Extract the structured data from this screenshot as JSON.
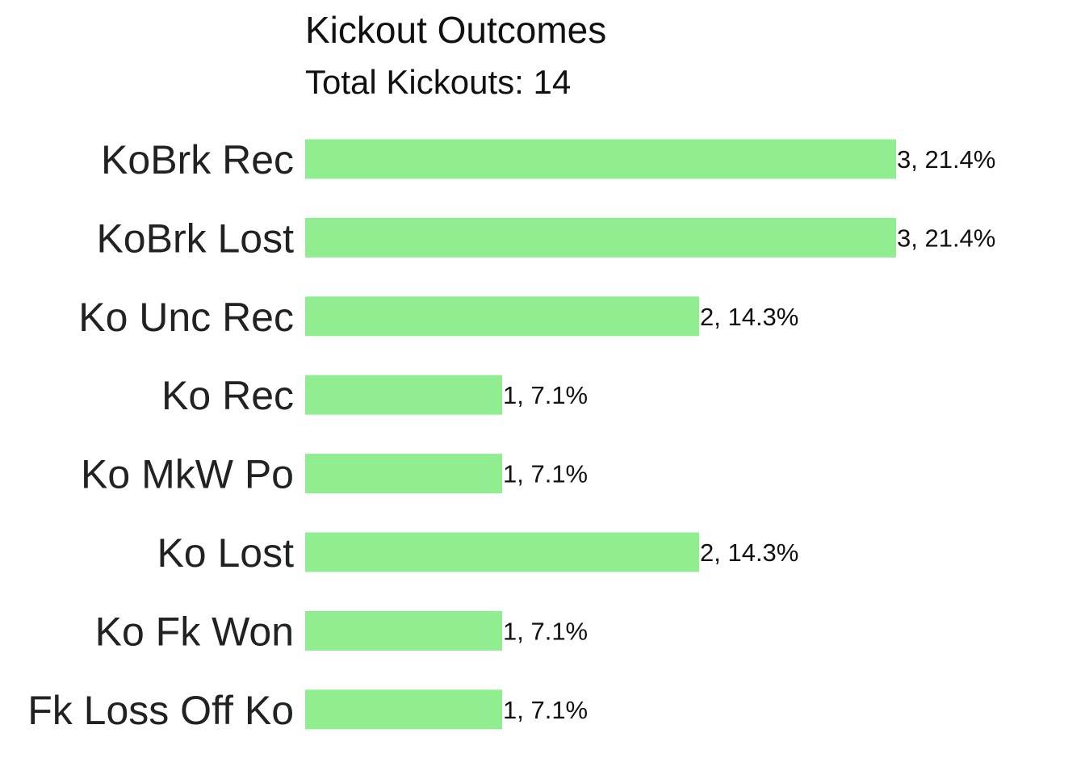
{
  "chart_data": {
    "type": "bar",
    "orientation": "horizontal",
    "title": "Kickout Outcomes",
    "subtitle": "Total Kickouts: 14",
    "xlabel": "",
    "ylabel": "",
    "grid": false,
    "legend": "none",
    "bar_color": "#90EE90",
    "xlim": [
      0,
      3
    ],
    "categories": [
      "KoBrk Rec",
      "KoBrk Lost",
      "Ko Unc Rec",
      "Ko Rec",
      "Ko MkW Po",
      "Ko Lost",
      "Ko Fk Won",
      "Fk Loss Off Ko"
    ],
    "values": [
      3,
      3,
      2,
      1,
      1,
      2,
      1,
      1
    ],
    "data_labels": [
      "3, 21.4%",
      "3, 21.4%",
      "2, 14.3%",
      "1, 7.1%",
      "1, 7.1%",
      "2, 14.3%",
      "1, 7.1%",
      "1, 7.1%"
    ]
  }
}
